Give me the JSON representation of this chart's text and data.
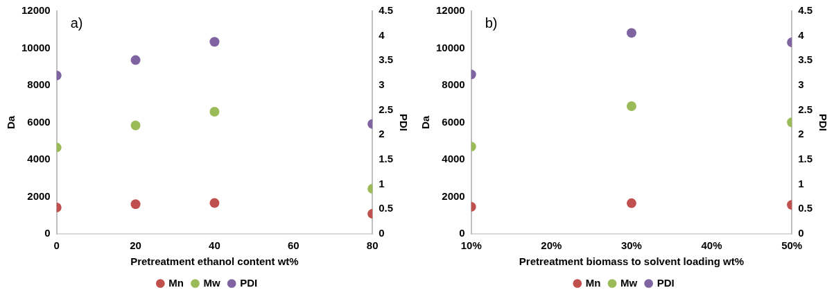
{
  "chart_data": [
    {
      "type": "scatter",
      "annotations": [
        "a)"
      ],
      "xlabel": "Pretreatment ethanol content wt%",
      "ylabel": "Da",
      "y2label": "PDI",
      "x": [
        0,
        20,
        40,
        80
      ],
      "series": [
        {
          "name": "Mn",
          "color": "#c0504d",
          "values": [
            1420,
            1600,
            1660,
            1080
          ]
        },
        {
          "name": "Mw",
          "color": "#9bbb59",
          "values": [
            4650,
            5840,
            6580,
            2430
          ]
        },
        {
          "name": "PDI",
          "color": "#8064a2",
          "axis": "y2",
          "values": [
            3.2,
            3.51,
            3.88,
            2.22
          ]
        }
      ],
      "xlim": [
        0,
        80
      ],
      "xticks": [
        0,
        20,
        40,
        60,
        80
      ],
      "ylim": [
        0,
        12000
      ],
      "yticks": [
        0,
        2000,
        4000,
        6000,
        8000,
        10000,
        12000
      ],
      "y2lim": [
        0,
        4.5
      ],
      "y2ticks": [
        0,
        0.5,
        1,
        1.5,
        2,
        2.5,
        3,
        3.5,
        4,
        4.5
      ],
      "grid": false,
      "legend": "bottom",
      "marker": "circle"
    },
    {
      "type": "scatter",
      "annotations": [
        "b)"
      ],
      "xlabel": "Pretreatment biomass to solvent loading wt%",
      "ylabel": "Da",
      "y2label": "PDI",
      "x": [
        10,
        30,
        50
      ],
      "series": [
        {
          "name": "Mn",
          "color": "#c0504d",
          "values": [
            1460,
            1650,
            1560
          ]
        },
        {
          "name": "Mw",
          "color": "#9bbb59",
          "values": [
            4700,
            6880,
            6010
          ]
        },
        {
          "name": "PDI",
          "color": "#8064a2",
          "axis": "y2",
          "values": [
            3.22,
            4.06,
            3.87
          ]
        }
      ],
      "xlim": [
        10,
        50
      ],
      "xticks": [
        {
          "value": 10,
          "label": "10%"
        },
        {
          "value": 20,
          "label": "20%"
        },
        {
          "value": 30,
          "label": "30%"
        },
        {
          "value": 40,
          "label": "40%"
        },
        {
          "value": 50,
          "label": "50%"
        }
      ],
      "ylim": [
        0,
        12000
      ],
      "yticks": [
        0,
        2000,
        4000,
        6000,
        8000,
        10000,
        12000
      ],
      "y2lim": [
        0,
        4.5
      ],
      "y2ticks": [
        0,
        0.5,
        1,
        1.5,
        2,
        2.5,
        3,
        3.5,
        4,
        4.5
      ],
      "grid": false,
      "legend": "bottom",
      "marker": "circle"
    }
  ]
}
